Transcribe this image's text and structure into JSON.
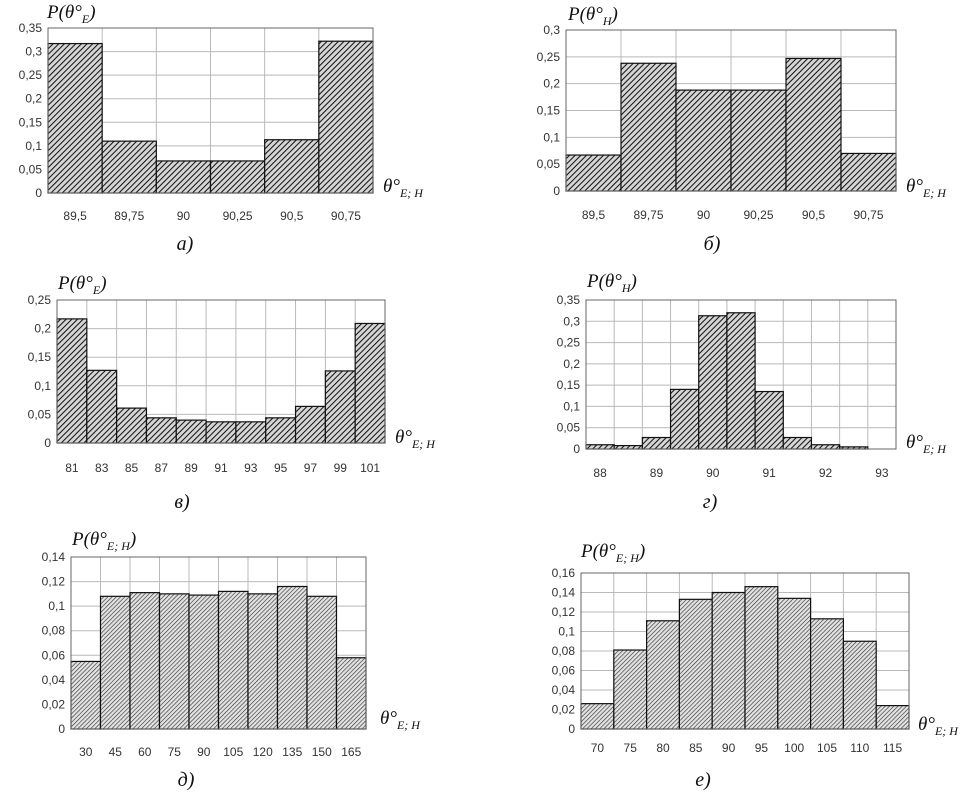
{
  "chart_data": [
    {
      "type": "bar",
      "ylabel_main": "P(θ°",
      "ylabel_sub": "E",
      "ylabel_close": ")",
      "xlabel_main": "θ°",
      "xlabel_sub": "E; H",
      "caption": "а)",
      "categories": [
        "89,5",
        "89,75",
        "90",
        "90,25",
        "90,5",
        "90,75"
      ],
      "values": [
        0.317,
        0.11,
        0.068,
        0.068,
        0.113,
        0.322
      ],
      "yticks": [
        "0",
        "0,05",
        "0,1",
        "0,15",
        "0,2",
        "0,25",
        "0,3",
        "0,35"
      ],
      "ylim": [
        0,
        0.35
      ],
      "grid": true,
      "fill": "hatch-dense"
    },
    {
      "type": "bar",
      "ylabel_main": "P(θ°",
      "ylabel_sub": "H",
      "ylabel_close": ")",
      "xlabel_main": "θ°",
      "xlabel_sub": "E; H",
      "caption": "б)",
      "categories": [
        "89,5",
        "89,75",
        "90",
        "90,25",
        "90,5",
        "90,75"
      ],
      "values": [
        0.067,
        0.238,
        0.188,
        0.188,
        0.247,
        0.07
      ],
      "yticks": [
        "0",
        "0,05",
        "0,1",
        "0,15",
        "0,2",
        "0,25",
        "0,3"
      ],
      "ylim": [
        0,
        0.3
      ],
      "grid": true,
      "fill": "hatch-dense"
    },
    {
      "type": "bar",
      "ylabel_main": "P(θ°",
      "ylabel_sub": "E",
      "ylabel_close": ")",
      "xlabel_main": "θ°",
      "xlabel_sub": "E; H",
      "caption": "в)",
      "categories": [
        "81",
        "83",
        "85",
        "87",
        "89",
        "91",
        "93",
        "95",
        "97",
        "99",
        "101"
      ],
      "values": [
        0.217,
        0.127,
        0.061,
        0.044,
        0.04,
        0.037,
        0.037,
        0.044,
        0.064,
        0.126,
        0.209
      ],
      "yticks": [
        "0",
        "0,05",
        "0,1",
        "0,15",
        "0,2",
        "0,25"
      ],
      "ylim": [
        0,
        0.25
      ],
      "grid": true,
      "fill": "hatch-dense"
    },
    {
      "type": "bar",
      "ylabel_main": "P(θ°",
      "ylabel_sub": "H",
      "ylabel_close": ")",
      "xlabel_main": "θ°",
      "xlabel_sub": "E; H",
      "caption": "г)",
      "categories": [
        "88",
        "",
        "89",
        "",
        "90",
        "",
        "91",
        "",
        "92",
        "",
        "93"
      ],
      "values": [
        0.01,
        0.008,
        0.027,
        0.14,
        0.313,
        0.32,
        0.135,
        0.027,
        0.01,
        0.005,
        0.0
      ],
      "yticks": [
        "0",
        "0,05",
        "0,1",
        "0,15",
        "0,2",
        "0,25",
        "0,3",
        "0,35"
      ],
      "ylim": [
        0,
        0.35
      ],
      "grid": true,
      "fill": "hatch-dense"
    },
    {
      "type": "bar",
      "ylabel_main": "P(θ°",
      "ylabel_sub": "E; H",
      "ylabel_close": ")",
      "xlabel_main": "θ°",
      "xlabel_sub": "E; H",
      "caption": "д)",
      "categories": [
        "30",
        "45",
        "60",
        "75",
        "90",
        "105",
        "120",
        "135",
        "150",
        "165"
      ],
      "values": [
        0.055,
        0.108,
        0.111,
        0.11,
        0.109,
        0.112,
        0.11,
        0.116,
        0.108,
        0.058
      ],
      "yticks": [
        "0",
        "0,02",
        "0,04",
        "0,06",
        "0,08",
        "0,1",
        "0,12",
        "0,14"
      ],
      "ylim": [
        0,
        0.14
      ],
      "grid": true,
      "fill": "hatch-fine"
    },
    {
      "type": "bar",
      "ylabel_main": "P(θ°",
      "ylabel_sub": "E; H",
      "ylabel_close": ")",
      "xlabel_main": "θ°",
      "xlabel_sub": "E; H",
      "caption": "е)",
      "categories": [
        "70",
        "75",
        "80",
        "85",
        "90",
        "95",
        "100",
        "105",
        "110",
        "115"
      ],
      "values": [
        0.026,
        0.081,
        0.111,
        0.133,
        0.14,
        0.146,
        0.134,
        0.113,
        0.09,
        0.024
      ],
      "yticks": [
        "0",
        "0,02",
        "0,04",
        "0,06",
        "0,08",
        "0,1",
        "0,12",
        "0,14",
        "0,16"
      ],
      "ylim": [
        0,
        0.16
      ],
      "grid": true,
      "fill": "hatch-fine"
    }
  ]
}
